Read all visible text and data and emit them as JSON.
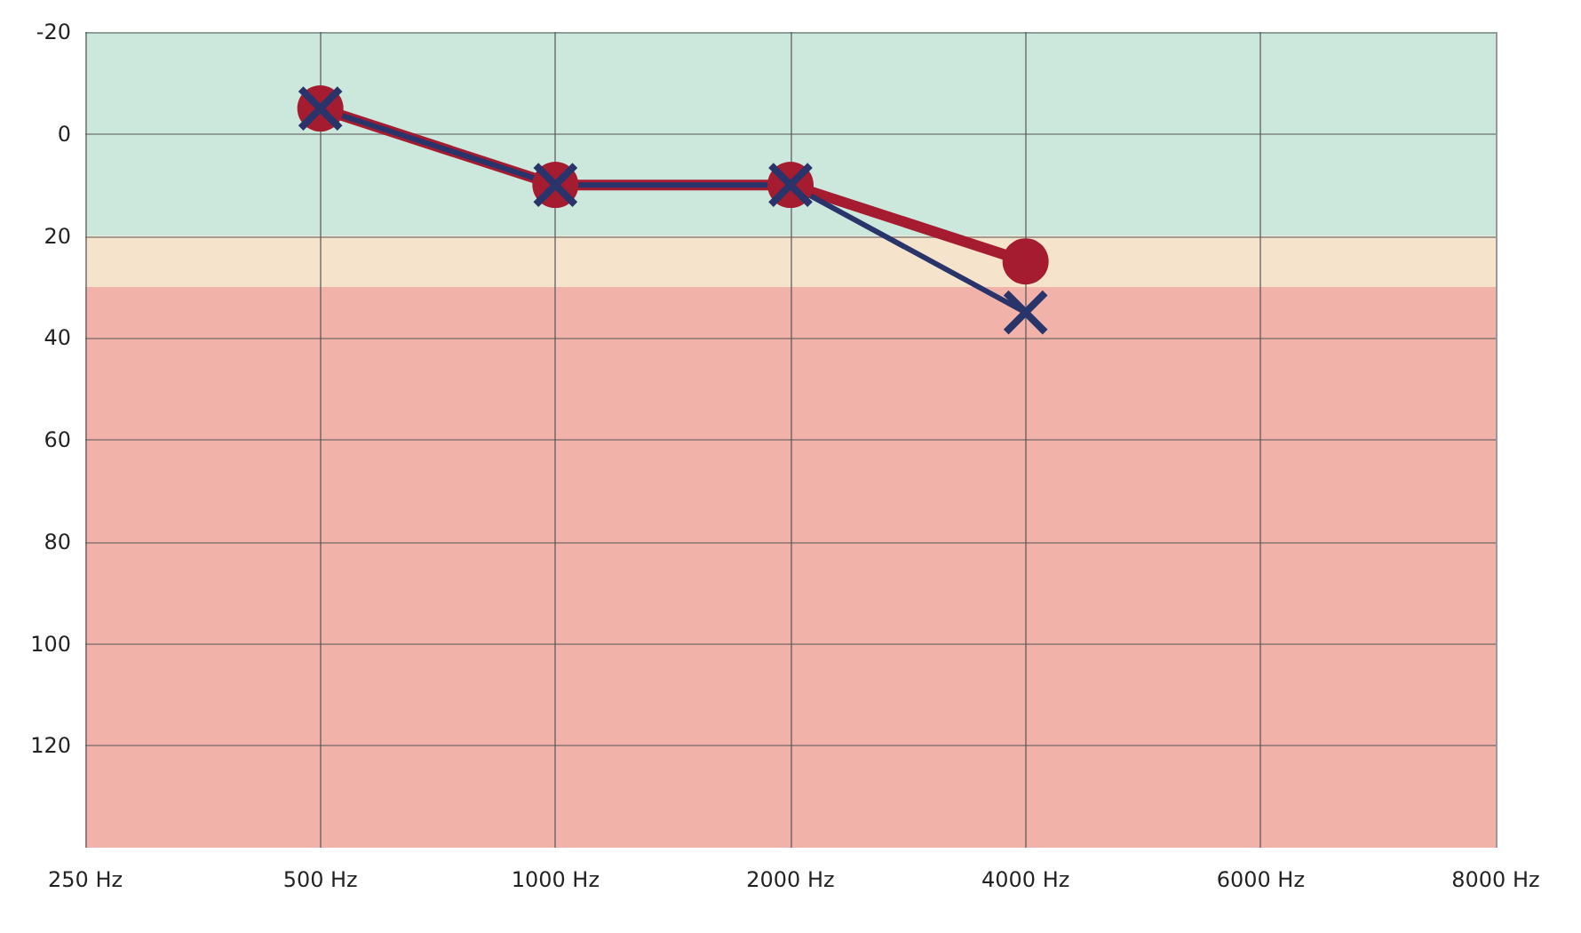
{
  "chart_data": {
    "type": "line",
    "categories": [
      "250 Hz",
      "500 Hz",
      "1000 Hz",
      "2000 Hz",
      "4000 Hz",
      "6000 Hz",
      "8000 Hz"
    ],
    "series": [
      {
        "color": "#a51c30",
        "marker": "circle",
        "values": [
          null,
          -5,
          10,
          10,
          25,
          null,
          null
        ]
      },
      {
        "color": "#28346a",
        "marker": "cross",
        "values": [
          null,
          -5,
          10,
          10,
          35,
          null,
          null
        ]
      }
    ],
    "ylim": [
      140,
      -20
    ],
    "yticks": [
      -20,
      0,
      20,
      40,
      60,
      80,
      100,
      120
    ],
    "bands": [
      {
        "axis": "y",
        "from": -20,
        "to": 20,
        "color": "#cce8dd"
      },
      {
        "axis": "y",
        "from": 20,
        "to": 30,
        "color": "#f5e3cc"
      },
      {
        "axis": "y",
        "from": 30,
        "to": 140,
        "color": "#f1b2aa"
      }
    ],
    "grid": true,
    "line_style": "solid"
  }
}
